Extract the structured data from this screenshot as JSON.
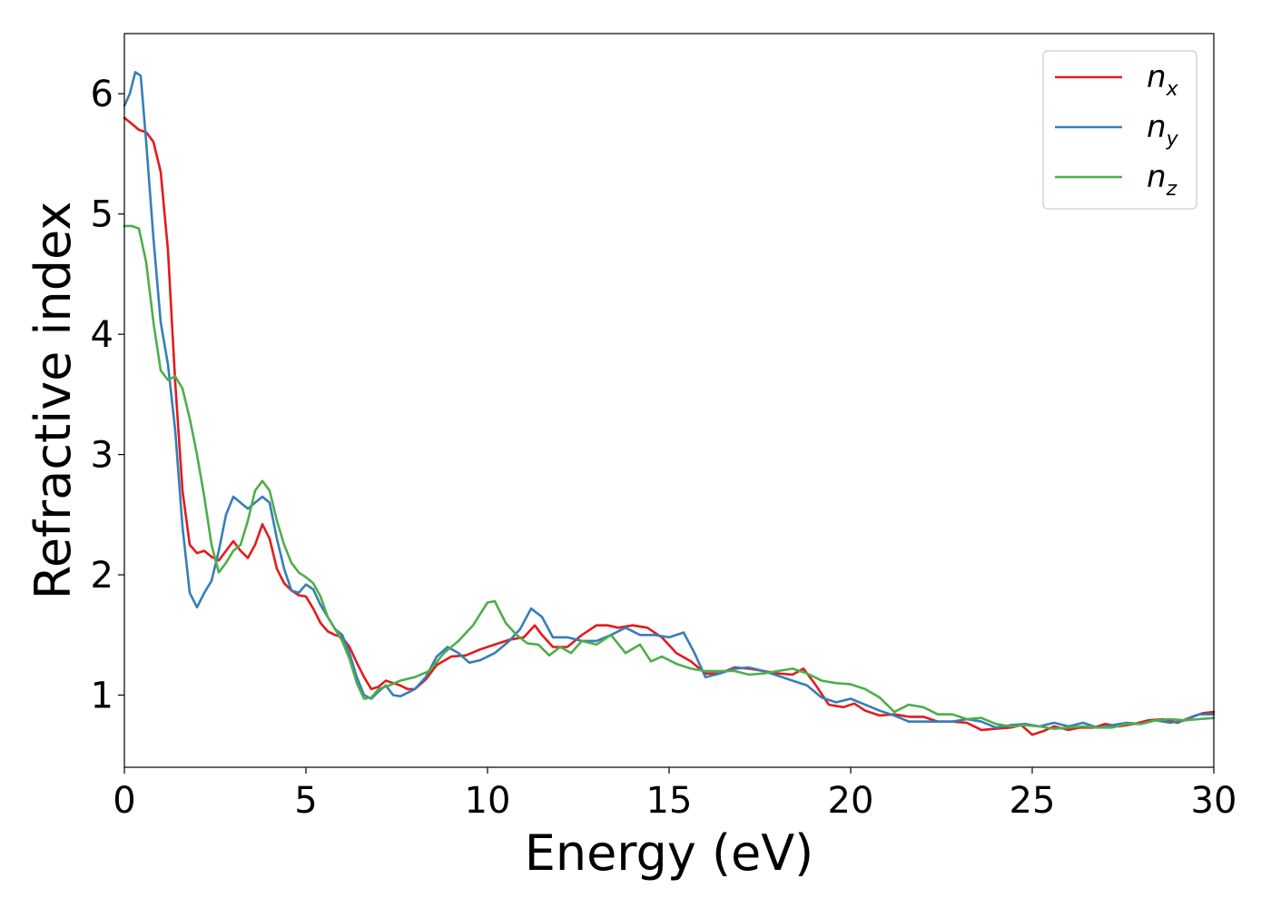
{
  "chart_data": {
    "type": "line",
    "xlabel": "Energy (eV)",
    "ylabel": "Refractive index",
    "xlim": [
      0,
      30
    ],
    "ylim": [
      0.4,
      6.5
    ],
    "xticks": [
      0,
      5,
      10,
      15,
      20,
      25,
      30
    ],
    "yticks": [
      1,
      2,
      3,
      4,
      5,
      6
    ],
    "grid": false,
    "legend_position": "top-right",
    "series": [
      {
        "name": "n_x",
        "label_base": "n",
        "label_sub": "x",
        "color": "#e41a1c",
        "points": [
          [
            0,
            5.8
          ],
          [
            0.2,
            5.75
          ],
          [
            0.4,
            5.7
          ],
          [
            0.6,
            5.68
          ],
          [
            0.8,
            5.6
          ],
          [
            1.0,
            5.35
          ],
          [
            1.2,
            4.7
          ],
          [
            1.4,
            3.6
          ],
          [
            1.6,
            2.7
          ],
          [
            1.8,
            2.25
          ],
          [
            2.0,
            2.18
          ],
          [
            2.2,
            2.2
          ],
          [
            2.4,
            2.15
          ],
          [
            2.6,
            2.12
          ],
          [
            2.8,
            2.2
          ],
          [
            3.0,
            2.28
          ],
          [
            3.2,
            2.2
          ],
          [
            3.4,
            2.14
          ],
          [
            3.6,
            2.25
          ],
          [
            3.8,
            2.42
          ],
          [
            4.0,
            2.3
          ],
          [
            4.2,
            2.05
          ],
          [
            4.4,
            1.93
          ],
          [
            4.6,
            1.87
          ],
          [
            4.8,
            1.83
          ],
          [
            5.0,
            1.82
          ],
          [
            5.2,
            1.72
          ],
          [
            5.4,
            1.6
          ],
          [
            5.6,
            1.53
          ],
          [
            5.8,
            1.5
          ],
          [
            6.0,
            1.48
          ],
          [
            6.2,
            1.4
          ],
          [
            6.4,
            1.27
          ],
          [
            6.6,
            1.15
          ],
          [
            6.8,
            1.05
          ],
          [
            7.0,
            1.07
          ],
          [
            7.2,
            1.12
          ],
          [
            7.4,
            1.1
          ],
          [
            7.6,
            1.08
          ],
          [
            7.8,
            1.05
          ],
          [
            8.0,
            1.05
          ],
          [
            8.3,
            1.13
          ],
          [
            8.6,
            1.25
          ],
          [
            9.0,
            1.32
          ],
          [
            9.4,
            1.33
          ],
          [
            9.8,
            1.38
          ],
          [
            10.2,
            1.42
          ],
          [
            10.6,
            1.46
          ],
          [
            11.0,
            1.48
          ],
          [
            11.3,
            1.58
          ],
          [
            11.5,
            1.5
          ],
          [
            11.8,
            1.4
          ],
          [
            12.2,
            1.4
          ],
          [
            12.6,
            1.5
          ],
          [
            13.0,
            1.58
          ],
          [
            13.3,
            1.58
          ],
          [
            13.6,
            1.56
          ],
          [
            14.0,
            1.58
          ],
          [
            14.4,
            1.56
          ],
          [
            14.8,
            1.48
          ],
          [
            15.2,
            1.35
          ],
          [
            15.6,
            1.28
          ],
          [
            16.0,
            1.18
          ],
          [
            16.4,
            1.18
          ],
          [
            16.8,
            1.23
          ],
          [
            17.2,
            1.22
          ],
          [
            17.6,
            1.2
          ],
          [
            18.0,
            1.18
          ],
          [
            18.4,
            1.17
          ],
          [
            18.7,
            1.22
          ],
          [
            19.0,
            1.1
          ],
          [
            19.4,
            0.92
          ],
          [
            19.8,
            0.9
          ],
          [
            20.1,
            0.93
          ],
          [
            20.4,
            0.87
          ],
          [
            20.8,
            0.83
          ],
          [
            21.2,
            0.84
          ],
          [
            21.6,
            0.82
          ],
          [
            22.0,
            0.82
          ],
          [
            22.4,
            0.78
          ],
          [
            22.8,
            0.78
          ],
          [
            23.2,
            0.77
          ],
          [
            23.6,
            0.71
          ],
          [
            24.0,
            0.72
          ],
          [
            24.4,
            0.73
          ],
          [
            24.7,
            0.75
          ],
          [
            25.0,
            0.67
          ],
          [
            25.3,
            0.7
          ],
          [
            25.6,
            0.74
          ],
          [
            26.0,
            0.71
          ],
          [
            26.3,
            0.73
          ],
          [
            26.7,
            0.73
          ],
          [
            27.0,
            0.76
          ],
          [
            27.4,
            0.74
          ],
          [
            27.8,
            0.76
          ],
          [
            28.2,
            0.79
          ],
          [
            28.6,
            0.8
          ],
          [
            29.0,
            0.77
          ],
          [
            29.4,
            0.82
          ],
          [
            29.7,
            0.85
          ],
          [
            30.0,
            0.86
          ]
        ]
      },
      {
        "name": "n_y",
        "label_base": "n",
        "label_sub": "y",
        "color": "#377eb8",
        "points": [
          [
            0,
            5.9
          ],
          [
            0.15,
            6.0
          ],
          [
            0.3,
            6.18
          ],
          [
            0.45,
            6.15
          ],
          [
            0.6,
            5.6
          ],
          [
            0.8,
            4.8
          ],
          [
            1.0,
            4.1
          ],
          [
            1.2,
            3.75
          ],
          [
            1.4,
            3.2
          ],
          [
            1.6,
            2.4
          ],
          [
            1.8,
            1.85
          ],
          [
            2.0,
            1.73
          ],
          [
            2.2,
            1.85
          ],
          [
            2.4,
            1.95
          ],
          [
            2.6,
            2.2
          ],
          [
            2.8,
            2.5
          ],
          [
            3.0,
            2.65
          ],
          [
            3.2,
            2.6
          ],
          [
            3.4,
            2.55
          ],
          [
            3.6,
            2.6
          ],
          [
            3.8,
            2.65
          ],
          [
            4.0,
            2.6
          ],
          [
            4.2,
            2.3
          ],
          [
            4.4,
            2.05
          ],
          [
            4.6,
            1.87
          ],
          [
            4.8,
            1.85
          ],
          [
            5.0,
            1.92
          ],
          [
            5.2,
            1.88
          ],
          [
            5.4,
            1.75
          ],
          [
            5.6,
            1.65
          ],
          [
            5.8,
            1.55
          ],
          [
            6.0,
            1.5
          ],
          [
            6.2,
            1.35
          ],
          [
            6.4,
            1.15
          ],
          [
            6.6,
            1.0
          ],
          [
            6.8,
            0.97
          ],
          [
            7.0,
            1.03
          ],
          [
            7.2,
            1.08
          ],
          [
            7.4,
            1.0
          ],
          [
            7.6,
            0.99
          ],
          [
            7.8,
            1.02
          ],
          [
            8.0,
            1.05
          ],
          [
            8.3,
            1.15
          ],
          [
            8.6,
            1.32
          ],
          [
            8.9,
            1.4
          ],
          [
            9.2,
            1.35
          ],
          [
            9.5,
            1.27
          ],
          [
            9.8,
            1.29
          ],
          [
            10.2,
            1.35
          ],
          [
            10.6,
            1.45
          ],
          [
            10.9,
            1.55
          ],
          [
            11.2,
            1.72
          ],
          [
            11.5,
            1.65
          ],
          [
            11.8,
            1.48
          ],
          [
            12.2,
            1.48
          ],
          [
            12.6,
            1.45
          ],
          [
            13.0,
            1.45
          ],
          [
            13.4,
            1.5
          ],
          [
            13.8,
            1.56
          ],
          [
            14.2,
            1.5
          ],
          [
            14.6,
            1.5
          ],
          [
            15.0,
            1.48
          ],
          [
            15.4,
            1.52
          ],
          [
            15.7,
            1.35
          ],
          [
            16.0,
            1.15
          ],
          [
            16.4,
            1.18
          ],
          [
            16.8,
            1.22
          ],
          [
            17.2,
            1.23
          ],
          [
            17.6,
            1.2
          ],
          [
            18.0,
            1.16
          ],
          [
            18.4,
            1.12
          ],
          [
            18.8,
            1.08
          ],
          [
            19.2,
            0.98
          ],
          [
            19.6,
            0.94
          ],
          [
            20.0,
            0.97
          ],
          [
            20.4,
            0.92
          ],
          [
            20.8,
            0.87
          ],
          [
            21.2,
            0.83
          ],
          [
            21.6,
            0.78
          ],
          [
            22.0,
            0.78
          ],
          [
            22.4,
            0.78
          ],
          [
            22.8,
            0.78
          ],
          [
            23.2,
            0.8
          ],
          [
            23.6,
            0.78
          ],
          [
            24.0,
            0.73
          ],
          [
            24.4,
            0.75
          ],
          [
            24.8,
            0.76
          ],
          [
            25.2,
            0.74
          ],
          [
            25.6,
            0.77
          ],
          [
            26.0,
            0.74
          ],
          [
            26.4,
            0.77
          ],
          [
            26.8,
            0.73
          ],
          [
            27.2,
            0.75
          ],
          [
            27.6,
            0.77
          ],
          [
            28.0,
            0.76
          ],
          [
            28.4,
            0.79
          ],
          [
            28.8,
            0.77
          ],
          [
            29.2,
            0.79
          ],
          [
            29.6,
            0.84
          ],
          [
            30.0,
            0.84
          ]
        ]
      },
      {
        "name": "n_z",
        "label_base": "n",
        "label_sub": "z",
        "color": "#4daf4a",
        "points": [
          [
            0,
            4.9
          ],
          [
            0.2,
            4.9
          ],
          [
            0.4,
            4.88
          ],
          [
            0.6,
            4.6
          ],
          [
            0.8,
            4.1
          ],
          [
            1.0,
            3.7
          ],
          [
            1.2,
            3.62
          ],
          [
            1.4,
            3.65
          ],
          [
            1.6,
            3.55
          ],
          [
            1.8,
            3.3
          ],
          [
            2.0,
            3.0
          ],
          [
            2.2,
            2.65
          ],
          [
            2.4,
            2.25
          ],
          [
            2.6,
            2.02
          ],
          [
            2.8,
            2.1
          ],
          [
            3.0,
            2.2
          ],
          [
            3.2,
            2.25
          ],
          [
            3.4,
            2.45
          ],
          [
            3.6,
            2.7
          ],
          [
            3.8,
            2.78
          ],
          [
            4.0,
            2.7
          ],
          [
            4.2,
            2.45
          ],
          [
            4.4,
            2.25
          ],
          [
            4.6,
            2.1
          ],
          [
            4.8,
            2.02
          ],
          [
            5.0,
            1.98
          ],
          [
            5.2,
            1.93
          ],
          [
            5.4,
            1.82
          ],
          [
            5.6,
            1.65
          ],
          [
            5.8,
            1.55
          ],
          [
            6.0,
            1.45
          ],
          [
            6.2,
            1.3
          ],
          [
            6.4,
            1.1
          ],
          [
            6.6,
            0.97
          ],
          [
            6.8,
            0.98
          ],
          [
            7.0,
            1.05
          ],
          [
            7.3,
            1.08
          ],
          [
            7.6,
            1.12
          ],
          [
            8.0,
            1.15
          ],
          [
            8.4,
            1.2
          ],
          [
            8.8,
            1.35
          ],
          [
            9.2,
            1.45
          ],
          [
            9.6,
            1.58
          ],
          [
            10.0,
            1.77
          ],
          [
            10.2,
            1.78
          ],
          [
            10.5,
            1.6
          ],
          [
            10.8,
            1.5
          ],
          [
            11.1,
            1.43
          ],
          [
            11.4,
            1.42
          ],
          [
            11.7,
            1.33
          ],
          [
            12.0,
            1.4
          ],
          [
            12.3,
            1.35
          ],
          [
            12.6,
            1.45
          ],
          [
            13.0,
            1.42
          ],
          [
            13.4,
            1.5
          ],
          [
            13.8,
            1.35
          ],
          [
            14.2,
            1.42
          ],
          [
            14.5,
            1.28
          ],
          [
            14.8,
            1.32
          ],
          [
            15.2,
            1.26
          ],
          [
            15.6,
            1.22
          ],
          [
            16.0,
            1.2
          ],
          [
            16.4,
            1.2
          ],
          [
            16.8,
            1.2
          ],
          [
            17.2,
            1.17
          ],
          [
            17.6,
            1.18
          ],
          [
            18.0,
            1.2
          ],
          [
            18.4,
            1.22
          ],
          [
            18.8,
            1.18
          ],
          [
            19.2,
            1.12
          ],
          [
            19.6,
            1.1
          ],
          [
            20.0,
            1.09
          ],
          [
            20.4,
            1.05
          ],
          [
            20.8,
            0.98
          ],
          [
            21.2,
            0.86
          ],
          [
            21.6,
            0.92
          ],
          [
            22.0,
            0.9
          ],
          [
            22.4,
            0.84
          ],
          [
            22.8,
            0.84
          ],
          [
            23.2,
            0.8
          ],
          [
            23.6,
            0.81
          ],
          [
            24.0,
            0.76
          ],
          [
            24.4,
            0.74
          ],
          [
            24.8,
            0.75
          ],
          [
            25.2,
            0.74
          ],
          [
            25.6,
            0.72
          ],
          [
            26.0,
            0.73
          ],
          [
            26.4,
            0.74
          ],
          [
            26.8,
            0.73
          ],
          [
            27.2,
            0.73
          ],
          [
            27.6,
            0.76
          ],
          [
            28.0,
            0.76
          ],
          [
            28.4,
            0.79
          ],
          [
            28.8,
            0.8
          ],
          [
            29.2,
            0.79
          ],
          [
            29.6,
            0.8
          ],
          [
            30.0,
            0.81
          ]
        ]
      }
    ]
  }
}
